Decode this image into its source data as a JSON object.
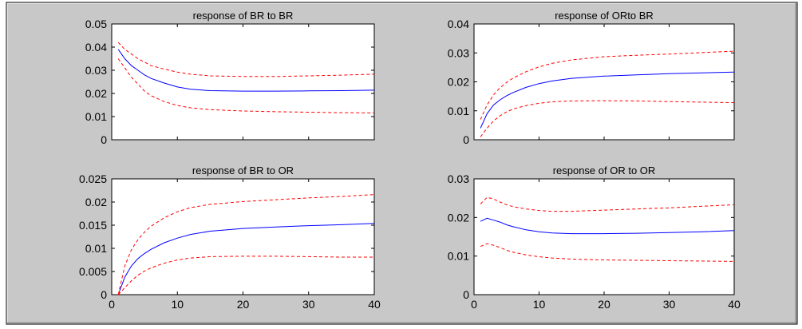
{
  "figure": {
    "background": "#c8c8c8",
    "plot_background": "#ffffff",
    "border_color": "#000000",
    "frame_color": "#808080"
  },
  "chart_data": [
    {
      "type": "line",
      "title": "response of BR to BR",
      "xlim": [
        0,
        40
      ],
      "ylim": [
        0,
        0.05
      ],
      "xticks": [],
      "yticks": [
        0,
        0.01,
        0.02,
        0.03,
        0.04,
        0.05
      ],
      "ytick_labels": [
        "0",
        "0.01",
        "0.02",
        "0.03",
        "0.04",
        "0.05"
      ],
      "x": [
        1,
        2,
        3,
        4,
        5,
        6,
        8,
        10,
        12,
        15,
        20,
        25,
        30,
        35,
        40
      ],
      "series": [
        {
          "values": [
            0.039,
            0.035,
            0.032,
            0.03,
            0.028,
            0.0265,
            0.0245,
            0.0228,
            0.0218,
            0.0212,
            0.021,
            0.021,
            0.0211,
            0.0212,
            0.0214
          ],
          "color": "#0000ff",
          "style": "solid"
        },
        {
          "values": [
            0.042,
            0.039,
            0.037,
            0.035,
            0.0335,
            0.032,
            0.0305,
            0.0292,
            0.0283,
            0.0276,
            0.0273,
            0.0273,
            0.0276,
            0.0279,
            0.0283
          ],
          "color": "#ff0000",
          "style": "dashed"
        },
        {
          "values": [
            0.035,
            0.031,
            0.027,
            0.024,
            0.021,
            0.019,
            0.0165,
            0.0148,
            0.0138,
            0.013,
            0.0124,
            0.0121,
            0.0119,
            0.0117,
            0.0116
          ],
          "color": "#ff0000",
          "style": "dashed"
        }
      ]
    },
    {
      "type": "line",
      "title": "response of ORto BR",
      "xlim": [
        0,
        40
      ],
      "ylim": [
        0,
        0.04
      ],
      "xticks": [],
      "yticks": [
        0,
        0.01,
        0.02,
        0.03,
        0.04
      ],
      "ytick_labels": [
        "0",
        "0.01",
        "0.02",
        "0.03",
        "0.04"
      ],
      "x": [
        1,
        2,
        3,
        4,
        5,
        6,
        8,
        10,
        12,
        15,
        20,
        25,
        30,
        35,
        40
      ],
      "series": [
        {
          "values": [
            0.004,
            0.009,
            0.012,
            0.0138,
            0.0152,
            0.0163,
            0.0181,
            0.0194,
            0.0203,
            0.0212,
            0.022,
            0.0224,
            0.0228,
            0.0231,
            0.0234
          ],
          "color": "#0000ff",
          "style": "solid"
        },
        {
          "values": [
            0.007,
            0.012,
            0.0155,
            0.018,
            0.0198,
            0.0213,
            0.0235,
            0.0252,
            0.0264,
            0.0276,
            0.0287,
            0.0292,
            0.0296,
            0.0301,
            0.0306
          ],
          "color": "#ff0000",
          "style": "dashed"
        },
        {
          "values": [
            0.001,
            0.004,
            0.0065,
            0.0083,
            0.0096,
            0.0106,
            0.0118,
            0.0126,
            0.0131,
            0.0134,
            0.0135,
            0.0134,
            0.0132,
            0.013,
            0.0128
          ],
          "color": "#ff0000",
          "style": "dashed"
        }
      ]
    },
    {
      "type": "line",
      "title": "response of BR to OR",
      "xlim": [
        0,
        40
      ],
      "ylim": [
        0,
        0.025
      ],
      "xticks": [
        0,
        10,
        20,
        30,
        40
      ],
      "xtick_labels": [
        "0",
        "10",
        "20",
        "30",
        "40"
      ],
      "yticks": [
        0,
        0.005,
        0.01,
        0.015,
        0.02,
        0.025
      ],
      "ytick_labels": [
        "0",
        "0.005",
        "0.01",
        "0.015",
        "0.02",
        "0.025"
      ],
      "x": [
        1,
        2,
        3,
        4,
        5,
        6,
        8,
        10,
        12,
        15,
        20,
        25,
        30,
        35,
        40
      ],
      "series": [
        {
          "values": [
            0.0,
            0.0038,
            0.0062,
            0.0078,
            0.0089,
            0.0098,
            0.0112,
            0.0122,
            0.013,
            0.0137,
            0.0143,
            0.0146,
            0.0149,
            0.0151,
            0.0154
          ],
          "color": "#0000ff",
          "style": "solid"
        },
        {
          "values": [
            0.0,
            0.0062,
            0.0097,
            0.0119,
            0.0135,
            0.0148,
            0.0166,
            0.0179,
            0.0188,
            0.0195,
            0.0201,
            0.0205,
            0.0209,
            0.0212,
            0.0216
          ],
          "color": "#ff0000",
          "style": "dashed"
        },
        {
          "values": [
            0.0,
            0.0015,
            0.003,
            0.0042,
            0.0051,
            0.0058,
            0.0068,
            0.0075,
            0.0079,
            0.0082,
            0.0083,
            0.0083,
            0.0082,
            0.0081,
            0.0081
          ],
          "color": "#ff0000",
          "style": "dashed"
        }
      ]
    },
    {
      "type": "line",
      "title": "response of OR to OR",
      "xlim": [
        0,
        40
      ],
      "ylim": [
        0,
        0.03
      ],
      "xticks": [
        0,
        10,
        20,
        30,
        40
      ],
      "xtick_labels": [
        "0",
        "10",
        "20",
        "30",
        "40"
      ],
      "yticks": [
        0,
        0.01,
        0.02,
        0.03
      ],
      "ytick_labels": [
        "0",
        "0.01",
        "0.02",
        "0.03"
      ],
      "x": [
        1,
        2,
        3,
        4,
        5,
        6,
        8,
        10,
        12,
        15,
        20,
        25,
        30,
        35,
        40
      ],
      "series": [
        {
          "values": [
            0.019,
            0.0198,
            0.0193,
            0.0188,
            0.0181,
            0.0176,
            0.0168,
            0.0163,
            0.016,
            0.0158,
            0.0158,
            0.0159,
            0.0161,
            0.0163,
            0.0166
          ],
          "color": "#0000ff",
          "style": "solid"
        },
        {
          "values": [
            0.0235,
            0.0252,
            0.0248,
            0.024,
            0.0233,
            0.0228,
            0.0222,
            0.0218,
            0.0216,
            0.0216,
            0.0219,
            0.0222,
            0.0225,
            0.0229,
            0.0233
          ],
          "color": "#ff0000",
          "style": "dashed"
        },
        {
          "values": [
            0.0125,
            0.0132,
            0.0128,
            0.0122,
            0.0115,
            0.011,
            0.0103,
            0.0098,
            0.0095,
            0.0092,
            0.009,
            0.0089,
            0.0088,
            0.0087,
            0.0086
          ],
          "color": "#ff0000",
          "style": "dashed"
        }
      ]
    }
  ]
}
